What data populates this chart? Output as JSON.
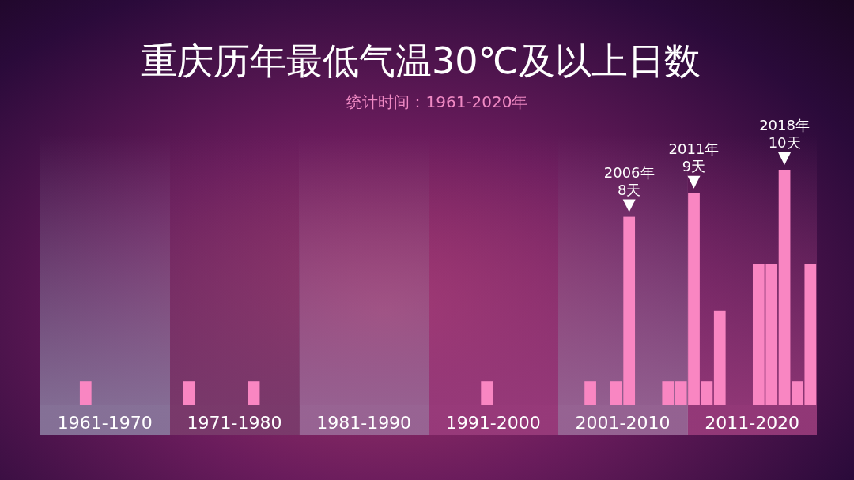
{
  "chart_data": {
    "type": "bar",
    "title": "重庆历年最低气温30℃及以上日数",
    "subtitle": "统计时间：1961-2020年",
    "categories": [
      "1961-1970",
      "1971-1980",
      "1981-1990",
      "1991-2000",
      "2001-2010",
      "2011-2020"
    ],
    "series": [
      {
        "color": "#f986c2",
        "values": [
          0,
          0,
          0,
          0,
          0,
          9
        ],
        "value_labels": [
          null,
          null,
          null,
          null,
          null,
          "2011年\n9天"
        ]
      },
      {
        "color": "#f986c2",
        "values": [
          0,
          1,
          0,
          0,
          0,
          1
        ]
      },
      {
        "color": "#f986c2",
        "values": [
          0,
          0,
          0,
          0,
          1,
          4
        ]
      },
      {
        "color": "#f986c2",
        "values": [
          1,
          0,
          0,
          0,
          0,
          0
        ]
      },
      {
        "color": "#f986c2",
        "values": [
          0,
          0,
          0,
          1,
          1,
          0
        ]
      },
      {
        "color": "#f986c2",
        "values": [
          0,
          0,
          0,
          0,
          8,
          6
        ],
        "value_labels": [
          null,
          null,
          null,
          null,
          "2006年\n8天",
          null
        ]
      },
      {
        "color": "#f986c2",
        "values": [
          0,
          1,
          0,
          0,
          0,
          6
        ]
      },
      {
        "color": "#f986c2",
        "values": [
          0,
          0,
          0,
          0,
          0,
          10
        ],
        "value_labels": [
          null,
          null,
          null,
          null,
          null,
          "2018年\n10天"
        ]
      },
      {
        "color": "#f986c2",
        "values": [
          0,
          0,
          0,
          0,
          1,
          1
        ]
      },
      {
        "color": "#f986c2",
        "values": [
          0,
          0,
          0,
          0,
          1,
          6
        ]
      }
    ]
  }
}
